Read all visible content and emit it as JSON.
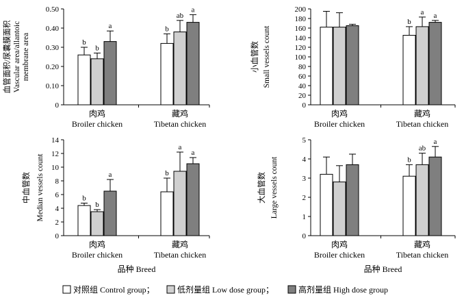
{
  "figure": {
    "legend": [
      {
        "label": "对照组 Control group；",
        "color": "#ffffff"
      },
      {
        "label": "低剂量组 Low dose group；",
        "color": "#d0d0d0"
      },
      {
        "label": "高剂量组 High dose group",
        "color": "#7f7f7f"
      }
    ],
    "stroke_color": "#000000"
  },
  "chart_data": [
    {
      "type": "bar",
      "id": "area",
      "title": "",
      "ylabel_lines": [
        "血管面积/尿囊膜面积",
        "Vascular area/allantoic",
        "membrane area"
      ],
      "xlabel": "",
      "categories": [
        {
          "zh": "肉鸡",
          "en": "Broiler chicken"
        },
        {
          "zh": "藏鸡",
          "en": "Tibetan chicken"
        }
      ],
      "ylim": [
        0,
        0.5
      ],
      "yticks": [
        "0",
        "0.10",
        "0.20",
        "0.30",
        "0.40",
        "0.50"
      ],
      "series": [
        {
          "name": "Control group",
          "values": [
            0.26,
            0.32
          ],
          "errors": [
            0.04,
            0.05
          ],
          "labels": [
            "b",
            "b"
          ]
        },
        {
          "name": "Low dose group",
          "values": [
            0.24,
            0.38
          ],
          "errors": [
            0.03,
            0.06
          ],
          "labels": [
            "b",
            "ab"
          ]
        },
        {
          "name": "High dose group",
          "values": [
            0.33,
            0.43
          ],
          "errors": [
            0.055,
            0.04
          ],
          "labels": [
            "a",
            "a"
          ]
        }
      ]
    },
    {
      "type": "bar",
      "id": "small",
      "title": "",
      "ylabel_lines": [
        "小血管数",
        "Small vessels count"
      ],
      "xlabel": "",
      "categories": [
        {
          "zh": "肉鸡",
          "en": "Broiler chicken"
        },
        {
          "zh": "藏鸡",
          "en": "Tibetan chicken"
        }
      ],
      "ylim": [
        0,
        200
      ],
      "yticks": [
        "0",
        "20",
        "40",
        "60",
        "80",
        "100",
        "120",
        "140",
        "160",
        "180",
        "200"
      ],
      "series": [
        {
          "name": "Control group",
          "values": [
            162,
            145
          ],
          "errors": [
            33,
            18
          ],
          "labels": [
            "",
            "b"
          ]
        },
        {
          "name": "Low dose group",
          "values": [
            162,
            163
          ],
          "errors": [
            30,
            20
          ],
          "labels": [
            "",
            "a"
          ]
        },
        {
          "name": "High dose group",
          "values": [
            165,
            172
          ],
          "errors": [
            3,
            4
          ],
          "labels": [
            "",
            "a"
          ]
        }
      ]
    },
    {
      "type": "bar",
      "id": "median",
      "title": "",
      "ylabel_lines": [
        "中血管数",
        "Median vessels count"
      ],
      "xlabel": "品种 Breed",
      "categories": [
        {
          "zh": "肉鸡",
          "en": "Broiler chicken"
        },
        {
          "zh": "藏鸡",
          "en": "Tibetan chicken"
        }
      ],
      "ylim": [
        0,
        14
      ],
      "yticks": [
        "0",
        "2",
        "4",
        "6",
        "8",
        "10",
        "12",
        "14"
      ],
      "series": [
        {
          "name": "Control group",
          "values": [
            4.4,
            6.4
          ],
          "errors": [
            0.35,
            2.0
          ],
          "labels": [
            "b",
            "b"
          ]
        },
        {
          "name": "Low dose group",
          "values": [
            3.5,
            9.4
          ],
          "errors": [
            0.3,
            2.8
          ],
          "labels": [
            "b",
            "a"
          ]
        },
        {
          "name": "High dose group",
          "values": [
            6.5,
            10.5
          ],
          "errors": [
            1.7,
            0.9
          ],
          "labels": [
            "a",
            "a"
          ]
        }
      ]
    },
    {
      "type": "bar",
      "id": "large",
      "title": "",
      "ylabel_lines": [
        "大血管数",
        "Large vessels count"
      ],
      "xlabel": "品种 Breed",
      "categories": [
        {
          "zh": "肉鸡",
          "en": "Broiler chicken"
        },
        {
          "zh": "藏鸡",
          "en": "Tibetan chicken"
        }
      ],
      "ylim": [
        0,
        5
      ],
      "yticks": [
        "0",
        "1",
        "2",
        "3",
        "4",
        "5"
      ],
      "series": [
        {
          "name": "Control group",
          "values": [
            3.2,
            3.1
          ],
          "errors": [
            0.9,
            0.6
          ],
          "labels": [
            "",
            "b"
          ]
        },
        {
          "name": "Low dose group",
          "values": [
            2.8,
            3.7
          ],
          "errors": [
            0.85,
            0.6
          ],
          "labels": [
            "",
            "ab"
          ]
        },
        {
          "name": "High dose group",
          "values": [
            3.7,
            4.1
          ],
          "errors": [
            0.55,
            0.55
          ],
          "labels": [
            "",
            "a"
          ]
        }
      ]
    }
  ]
}
